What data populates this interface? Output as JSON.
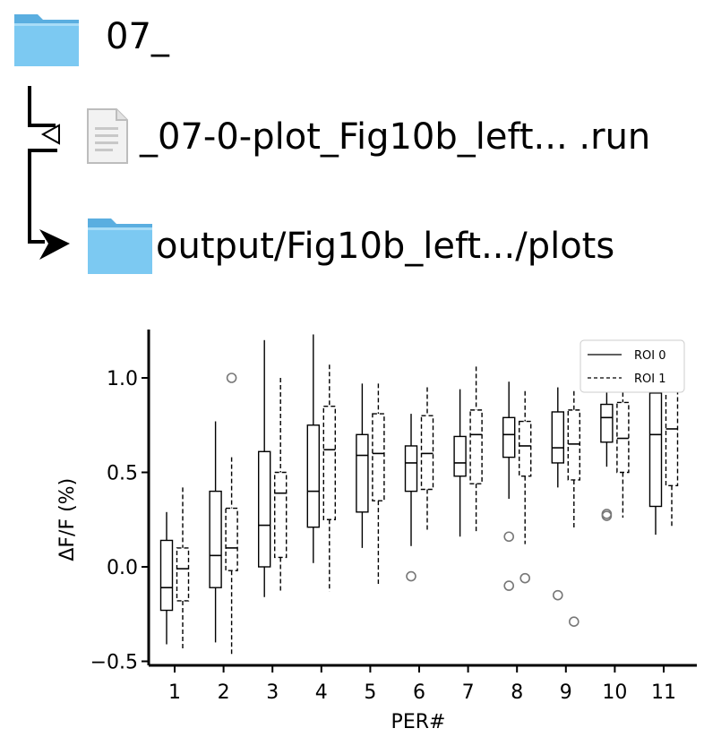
{
  "tree": {
    "root_label": "07_",
    "file_label": "_07-0-plot_Fig10b_left... .run",
    "output_label": "output/Fig10b_left.../plots",
    "folder_color": "#6bbfea"
  },
  "chart_data": {
    "type": "box",
    "xlabel": "PER#",
    "ylabel": "ΔF/F (%)",
    "ylim": [
      -0.5,
      1.25
    ],
    "yticks": [
      -0.5,
      0.0,
      0.5,
      1.0
    ],
    "ytick_labels": [
      "−0.5",
      "0.0",
      "0.5",
      "1.0"
    ],
    "categories": [
      "1",
      "2",
      "3",
      "4",
      "5",
      "6",
      "7",
      "8",
      "9",
      "10",
      "11"
    ],
    "grid": false,
    "legend_position": "top-right",
    "series": [
      {
        "name": "ROI 0",
        "line_style": "solid",
        "boxes": [
          {
            "whislo": -0.41,
            "q1": -0.23,
            "med": -0.11,
            "q3": 0.14,
            "whishi": 0.29,
            "fliers": []
          },
          {
            "whislo": -0.4,
            "q1": -0.11,
            "med": 0.06,
            "q3": 0.4,
            "whishi": 0.77,
            "fliers": []
          },
          {
            "whislo": -0.16,
            "q1": 0.0,
            "med": 0.22,
            "q3": 0.61,
            "whishi": 1.2,
            "fliers": []
          },
          {
            "whislo": 0.02,
            "q1": 0.21,
            "med": 0.4,
            "q3": 0.75,
            "whishi": 1.23,
            "fliers": []
          },
          {
            "whislo": 0.1,
            "q1": 0.29,
            "med": 0.59,
            "q3": 0.7,
            "whishi": 0.97,
            "fliers": []
          },
          {
            "whislo": 0.11,
            "q1": 0.4,
            "med": 0.55,
            "q3": 0.64,
            "whishi": 0.81,
            "fliers": [
              -0.05
            ]
          },
          {
            "whislo": 0.16,
            "q1": 0.48,
            "med": 0.55,
            "q3": 0.69,
            "whishi": 0.94,
            "fliers": []
          },
          {
            "whislo": 0.36,
            "q1": 0.58,
            "med": 0.7,
            "q3": 0.79,
            "whishi": 0.98,
            "fliers": [
              0.16,
              -0.1
            ]
          },
          {
            "whislo": 0.42,
            "q1": 0.55,
            "med": 0.63,
            "q3": 0.82,
            "whishi": 0.95,
            "fliers": [
              -0.15
            ]
          },
          {
            "whislo": 0.53,
            "q1": 0.66,
            "med": 0.79,
            "q3": 0.86,
            "whishi": 0.95,
            "fliers": [
              0.28,
              0.27
            ]
          },
          {
            "whislo": 0.17,
            "q1": 0.32,
            "med": 0.7,
            "q3": 0.92,
            "whishi": 1.0,
            "fliers": []
          }
        ]
      },
      {
        "name": "ROI 1",
        "line_style": "dashed",
        "boxes": [
          {
            "whislo": -0.44,
            "q1": -0.18,
            "med": -0.01,
            "q3": 0.1,
            "whishi": 0.42,
            "fliers": []
          },
          {
            "whislo": -0.47,
            "q1": -0.02,
            "med": 0.1,
            "q3": 0.31,
            "whishi": 0.58,
            "fliers": [
              1.0
            ]
          },
          {
            "whislo": -0.13,
            "q1": 0.05,
            "med": 0.39,
            "q3": 0.5,
            "whishi": 1.0,
            "fliers": []
          },
          {
            "whislo": -0.13,
            "q1": 0.25,
            "med": 0.62,
            "q3": 0.85,
            "whishi": 1.07,
            "fliers": []
          },
          {
            "whislo": -0.09,
            "q1": 0.35,
            "med": 0.6,
            "q3": 0.81,
            "whishi": 0.97,
            "fliers": []
          },
          {
            "whislo": 0.19,
            "q1": 0.41,
            "med": 0.6,
            "q3": 0.8,
            "whishi": 0.95,
            "fliers": []
          },
          {
            "whislo": 0.18,
            "q1": 0.44,
            "med": 0.7,
            "q3": 0.83,
            "whishi": 1.06,
            "fliers": []
          },
          {
            "whislo": 0.12,
            "q1": 0.48,
            "med": 0.64,
            "q3": 0.77,
            "whishi": 0.93,
            "fliers": [
              -0.06
            ]
          },
          {
            "whislo": 0.2,
            "q1": 0.46,
            "med": 0.65,
            "q3": 0.83,
            "whishi": 0.93,
            "fliers": [
              -0.29
            ]
          },
          {
            "whislo": 0.26,
            "q1": 0.5,
            "med": 0.68,
            "q3": 0.87,
            "whishi": 1.0,
            "fliers": []
          },
          {
            "whislo": 0.21,
            "q1": 0.43,
            "med": 0.73,
            "q3": 0.95,
            "whishi": 1.0,
            "fliers": []
          }
        ]
      }
    ]
  }
}
